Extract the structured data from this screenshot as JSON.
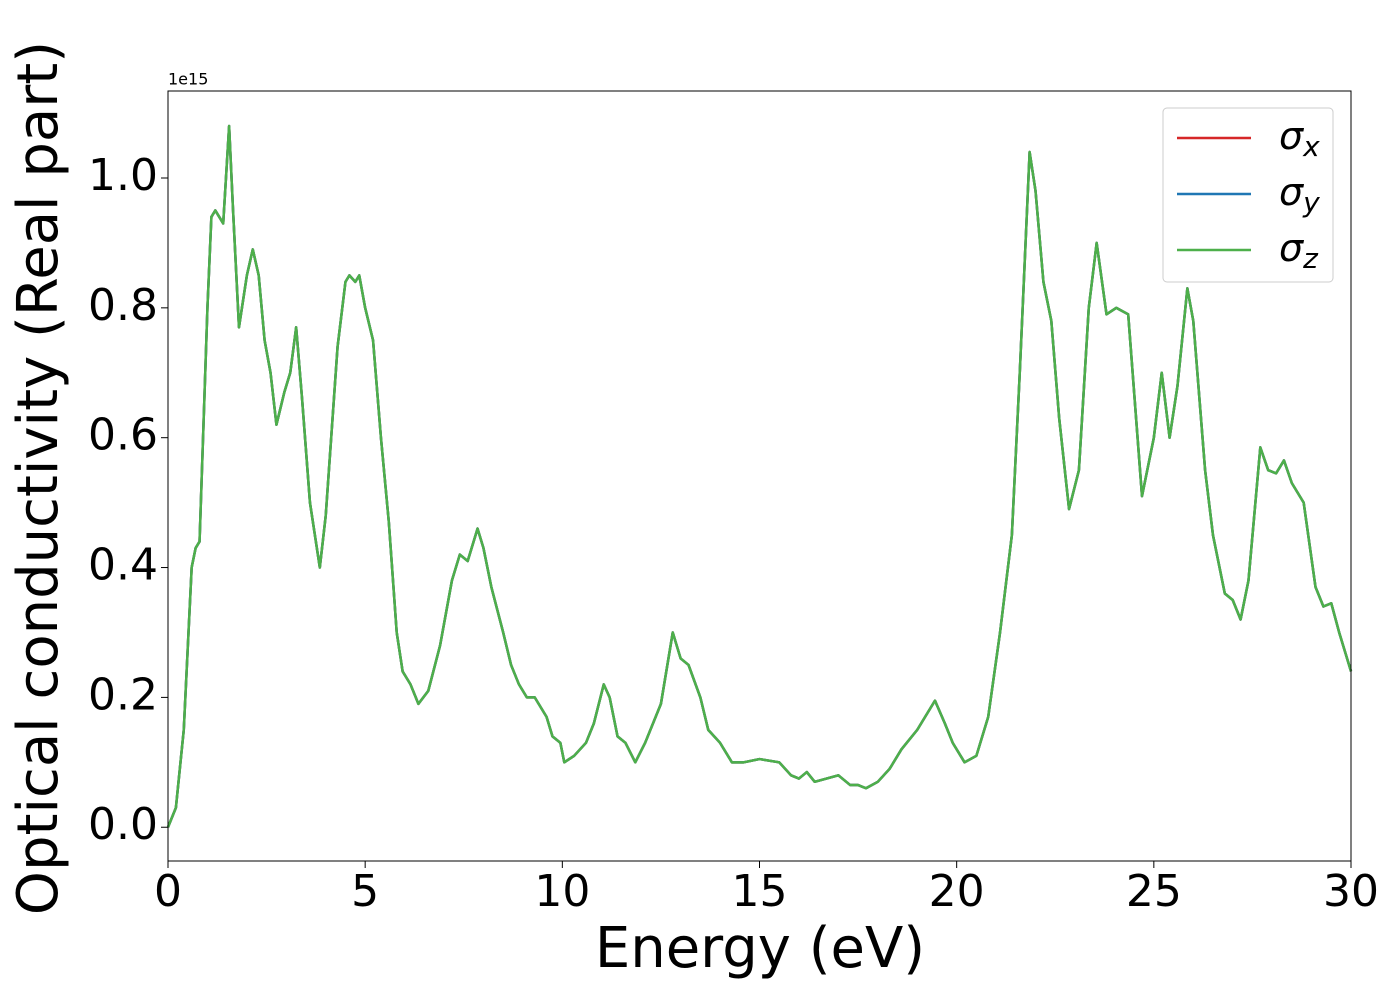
{
  "chart_data": {
    "type": "line",
    "xlabel": "Energy (eV)",
    "ylabel": "Optical conductivity (Real part)",
    "offset_label": "1e15",
    "xlim": [
      0,
      30
    ],
    "xticks": [
      0,
      5,
      10,
      15,
      20,
      25,
      30
    ],
    "ylim": [
      -0.052,
      1.134
    ],
    "yticks": [
      {
        "value": 0,
        "label": "0.0"
      },
      {
        "value": 0.2,
        "label": "0.2"
      },
      {
        "value": 0.4,
        "label": "0.4"
      },
      {
        "value": 0.6,
        "label": "0.6"
      },
      {
        "value": 0.8,
        "label": "0.8"
      },
      {
        "value": 1.0,
        "label": "1.0"
      }
    ],
    "legend": "upper right",
    "x": [
      0,
      0.2,
      0.4,
      0.6,
      0.7,
      0.8,
      1.0,
      1.1,
      1.2,
      1.4,
      1.55,
      1.65,
      1.8,
      2.0,
      2.15,
      2.3,
      2.45,
      2.6,
      2.75,
      2.95,
      3.1,
      3.25,
      3.4,
      3.6,
      3.85,
      4.0,
      4.3,
      4.5,
      4.6,
      4.75,
      4.85,
      5.0,
      5.2,
      5.4,
      5.6,
      5.8,
      5.95,
      6.15,
      6.35,
      6.6,
      6.9,
      7.2,
      7.4,
      7.6,
      7.85,
      8.0,
      8.2,
      8.5,
      8.7,
      8.9,
      9.1,
      9.3,
      9.6,
      9.75,
      9.95,
      10.05,
      10.3,
      10.6,
      10.8,
      11.05,
      11.2,
      11.4,
      11.6,
      11.85,
      12.1,
      12.5,
      12.8,
      13.0,
      13.2,
      13.5,
      13.7,
      14.0,
      14.3,
      14.6,
      15.0,
      15.5,
      15.8,
      16.0,
      16.2,
      16.4,
      16.7,
      17.0,
      17.3,
      17.5,
      17.7,
      18.0,
      18.3,
      18.6,
      19.0,
      19.45,
      19.7,
      19.9,
      20.2,
      20.5,
      20.8,
      21.1,
      21.4,
      21.6,
      21.85,
      22.0,
      22.2,
      22.4,
      22.6,
      22.85,
      23.1,
      23.35,
      23.55,
      23.8,
      24.05,
      24.35,
      24.7,
      25.0,
      25.2,
      25.4,
      25.6,
      25.85,
      26.0,
      26.3,
      26.5,
      26.8,
      27.0,
      27.2,
      27.4,
      27.7,
      27.9,
      28.1,
      28.3,
      28.5,
      28.8,
      29.1,
      29.3,
      29.5,
      29.7,
      30.0
    ],
    "series": [
      {
        "name": "σx",
        "color": "#d62728",
        "values": [
          0,
          0.03,
          0.15,
          0.4,
          0.43,
          0.44,
          0.8,
          0.94,
          0.95,
          0.93,
          1.08,
          0.95,
          0.77,
          0.85,
          0.89,
          0.85,
          0.75,
          0.7,
          0.62,
          0.67,
          0.7,
          0.77,
          0.66,
          0.5,
          0.4,
          0.48,
          0.74,
          0.84,
          0.85,
          0.84,
          0.85,
          0.8,
          0.75,
          0.6,
          0.47,
          0.3,
          0.24,
          0.22,
          0.19,
          0.21,
          0.28,
          0.38,
          0.42,
          0.41,
          0.46,
          0.43,
          0.37,
          0.3,
          0.25,
          0.22,
          0.2,
          0.2,
          0.17,
          0.14,
          0.13,
          0.1,
          0.11,
          0.13,
          0.16,
          0.22,
          0.2,
          0.14,
          0.13,
          0.1,
          0.13,
          0.19,
          0.3,
          0.26,
          0.25,
          0.2,
          0.15,
          0.13,
          0.1,
          0.1,
          0.105,
          0.1,
          0.08,
          0.075,
          0.085,
          0.07,
          0.075,
          0.08,
          0.065,
          0.065,
          0.06,
          0.07,
          0.09,
          0.12,
          0.15,
          0.195,
          0.16,
          0.13,
          0.1,
          0.11,
          0.17,
          0.3,
          0.45,
          0.7,
          1.04,
          0.98,
          0.84,
          0.78,
          0.63,
          0.49,
          0.55,
          0.8,
          0.9,
          0.79,
          0.8,
          0.79,
          0.51,
          0.6,
          0.7,
          0.6,
          0.68,
          0.83,
          0.78,
          0.55,
          0.45,
          0.36,
          0.35,
          0.32,
          0.38,
          0.585,
          0.55,
          0.545,
          0.565,
          0.53,
          0.5,
          0.37,
          0.34,
          0.345,
          0.3,
          0.24
        ]
      },
      {
        "name": "σy",
        "color": "#1f77b4",
        "values": [
          0,
          0.03,
          0.15,
          0.4,
          0.43,
          0.44,
          0.8,
          0.94,
          0.95,
          0.93,
          1.08,
          0.95,
          0.77,
          0.85,
          0.89,
          0.85,
          0.75,
          0.7,
          0.62,
          0.67,
          0.7,
          0.77,
          0.66,
          0.5,
          0.4,
          0.48,
          0.74,
          0.84,
          0.85,
          0.84,
          0.85,
          0.8,
          0.75,
          0.6,
          0.47,
          0.3,
          0.24,
          0.22,
          0.19,
          0.21,
          0.28,
          0.38,
          0.42,
          0.41,
          0.46,
          0.43,
          0.37,
          0.3,
          0.25,
          0.22,
          0.2,
          0.2,
          0.17,
          0.14,
          0.13,
          0.1,
          0.11,
          0.13,
          0.16,
          0.22,
          0.2,
          0.14,
          0.13,
          0.1,
          0.13,
          0.19,
          0.3,
          0.26,
          0.25,
          0.2,
          0.15,
          0.13,
          0.1,
          0.1,
          0.105,
          0.1,
          0.08,
          0.075,
          0.085,
          0.07,
          0.075,
          0.08,
          0.065,
          0.065,
          0.06,
          0.07,
          0.09,
          0.12,
          0.15,
          0.195,
          0.16,
          0.13,
          0.1,
          0.11,
          0.17,
          0.3,
          0.45,
          0.7,
          1.04,
          0.98,
          0.84,
          0.78,
          0.63,
          0.49,
          0.55,
          0.8,
          0.9,
          0.79,
          0.8,
          0.79,
          0.51,
          0.6,
          0.7,
          0.6,
          0.68,
          0.83,
          0.78,
          0.55,
          0.45,
          0.36,
          0.35,
          0.32,
          0.38,
          0.585,
          0.55,
          0.545,
          0.565,
          0.53,
          0.5,
          0.37,
          0.34,
          0.345,
          0.3,
          0.24
        ]
      },
      {
        "name": "σz",
        "color": "#4daf4a",
        "values": [
          0,
          0.03,
          0.15,
          0.4,
          0.43,
          0.44,
          0.8,
          0.94,
          0.95,
          0.93,
          1.08,
          0.95,
          0.77,
          0.85,
          0.89,
          0.85,
          0.75,
          0.7,
          0.62,
          0.67,
          0.7,
          0.77,
          0.66,
          0.5,
          0.4,
          0.48,
          0.74,
          0.84,
          0.85,
          0.84,
          0.85,
          0.8,
          0.75,
          0.6,
          0.47,
          0.3,
          0.24,
          0.22,
          0.19,
          0.21,
          0.28,
          0.38,
          0.42,
          0.41,
          0.46,
          0.43,
          0.37,
          0.3,
          0.25,
          0.22,
          0.2,
          0.2,
          0.17,
          0.14,
          0.13,
          0.1,
          0.11,
          0.13,
          0.16,
          0.22,
          0.2,
          0.14,
          0.13,
          0.1,
          0.13,
          0.19,
          0.3,
          0.26,
          0.25,
          0.2,
          0.15,
          0.13,
          0.1,
          0.1,
          0.105,
          0.1,
          0.08,
          0.075,
          0.085,
          0.07,
          0.075,
          0.08,
          0.065,
          0.065,
          0.06,
          0.07,
          0.09,
          0.12,
          0.15,
          0.195,
          0.16,
          0.13,
          0.1,
          0.11,
          0.17,
          0.3,
          0.45,
          0.7,
          1.04,
          0.98,
          0.84,
          0.78,
          0.63,
          0.49,
          0.55,
          0.8,
          0.9,
          0.79,
          0.8,
          0.79,
          0.51,
          0.6,
          0.7,
          0.6,
          0.68,
          0.83,
          0.78,
          0.55,
          0.45,
          0.36,
          0.35,
          0.32,
          0.38,
          0.585,
          0.55,
          0.545,
          0.565,
          0.53,
          0.5,
          0.37,
          0.34,
          0.345,
          0.3,
          0.24
        ]
      }
    ]
  }
}
